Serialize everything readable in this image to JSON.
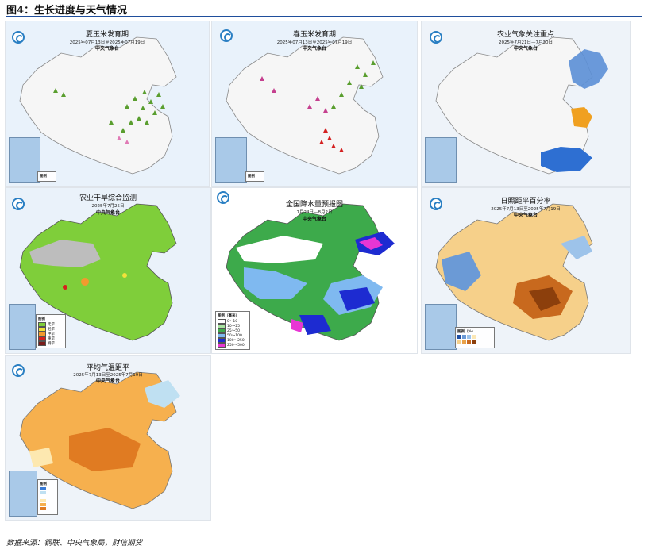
{
  "figure": {
    "title": "图4：生长进度与天气情况",
    "source": "数据来源：钢联、中央气象局，财信期货"
  },
  "panels": {
    "p1": {
      "title": "夏玉米发育期",
      "date": "2025年07月13日至2025年07月19日",
      "agency": "中央气象台",
      "legend_title": "图例"
    },
    "p2": {
      "title": "春玉米发育期",
      "date": "2025年07月13日至2025年07月19日",
      "agency": "中央气象台",
      "legend_title": "图例"
    },
    "p3": {
      "title": "农业气象关注重点",
      "date": "2025年7月21日—7月30日",
      "agency": "中央气象台"
    },
    "p4": {
      "title": "农业干旱综合监测",
      "date": "2025年7月25日",
      "agency": "中央气象台",
      "legend_title": "图例",
      "legend": [
        {
          "label": "无旱",
          "color": "#7fce3a"
        },
        {
          "label": "轻旱",
          "color": "#f2e23a"
        },
        {
          "label": "中旱",
          "color": "#f29a2e"
        },
        {
          "label": "重旱",
          "color": "#d6201d"
        },
        {
          "label": "特旱",
          "color": "#7a1c1c"
        }
      ]
    },
    "p5": {
      "title": "全国降水量预报图",
      "date": "7月24日—8月2日",
      "agency": "中央气象台",
      "legend_title": "图例（毫米）",
      "legend": [
        {
          "label": "0～10",
          "color": "#ffffff"
        },
        {
          "label": "10～25",
          "color": "#a8e3a0"
        },
        {
          "label": "25～50",
          "color": "#3daa4b"
        },
        {
          "label": "50～100",
          "color": "#7fb9f0"
        },
        {
          "label": "100～250",
          "color": "#1d2bd1"
        },
        {
          "label": "250～500",
          "color": "#e836d4"
        }
      ]
    },
    "p6": {
      "title": "日照距平百分率",
      "date": "2025年7月13日至2025年7月19日",
      "agency": "中央气象台",
      "legend_title": "图例（%）"
    },
    "p7": {
      "title": "平均气温距平",
      "date": "2025年7月13日至2025年7月19日",
      "agency": "中央气象台",
      "legend_title": "图例"
    }
  }
}
